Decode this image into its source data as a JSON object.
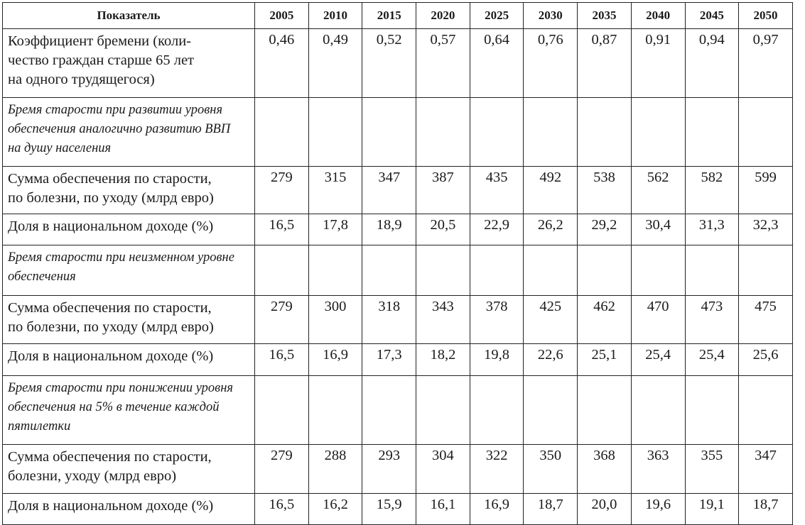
{
  "chart_data": {
    "type": "table",
    "header": {
      "indicator": "Показатель",
      "years": [
        "2005",
        "2010",
        "2015",
        "2020",
        "2025",
        "2030",
        "2035",
        "2040",
        "2045",
        "2050"
      ]
    },
    "rows": [
      {
        "kind": "data",
        "cls": "r-burden",
        "label": "Коэффициент бремени (коли-\nчество граждан старше 65 лет\nна одного трудящегося)",
        "values": [
          "0,46",
          "0,49",
          "0,52",
          "0,57",
          "0,64",
          "0,76",
          "0,87",
          "0,91",
          "0,94",
          "0,97"
        ]
      },
      {
        "kind": "section",
        "cls": "r-sec1",
        "label": "Бремя старости при развитии уровня\nобеспечения аналогично развитию ВВП\nна душу населения"
      },
      {
        "kind": "data",
        "cls": "r-sum1",
        "label": "Сумма обеспечения по старости,\nпо болезни, по уходу (млрд евро)",
        "values": [
          "279",
          "315",
          "347",
          "387",
          "435",
          "492",
          "538",
          "562",
          "582",
          "599"
        ]
      },
      {
        "kind": "data",
        "cls": "r-share1",
        "label": "Доля в национальном доходе (%)",
        "values": [
          "16,5",
          "17,8",
          "18,9",
          "20,5",
          "22,9",
          "26,2",
          "29,2",
          "30,4",
          "31,3",
          "32,3"
        ]
      },
      {
        "kind": "section",
        "cls": "r-sec2",
        "label": "Бремя старости при неизменном уровне\nобеспечения"
      },
      {
        "kind": "data",
        "cls": "r-sum2",
        "label": "Сумма обеспечения по старости,\nпо болезни, по уходу (млрд евро)",
        "values": [
          "279",
          "300",
          "318",
          "343",
          "378",
          "425",
          "462",
          "470",
          "473",
          "475"
        ]
      },
      {
        "kind": "data",
        "cls": "r-share2",
        "label": "Доля в национальном доходе (%)",
        "values": [
          "16,5",
          "16,9",
          "17,3",
          "18,2",
          "19,8",
          "22,6",
          "25,1",
          "25,4",
          "25,4",
          "25,6"
        ]
      },
      {
        "kind": "section",
        "cls": "r-sec3",
        "label": "Бремя старости при понижении уровня\nобеспечения на 5% в течение каждой\nпятилетки"
      },
      {
        "kind": "data",
        "cls": "r-sum3",
        "label": "Сумма обеспечения по старости,\nболезни, уходу (млрд евро)",
        "values": [
          "279",
          "288",
          "293",
          "304",
          "322",
          "350",
          "368",
          "363",
          "355",
          "347"
        ]
      },
      {
        "kind": "data",
        "cls": "r-share3",
        "label": "Доля в национальном доходе (%)",
        "values": [
          "16,5",
          "16,2",
          "15,9",
          "16,1",
          "16,9",
          "18,7",
          "20,0",
          "19,6",
          "19,1",
          "18,7"
        ]
      }
    ]
  }
}
